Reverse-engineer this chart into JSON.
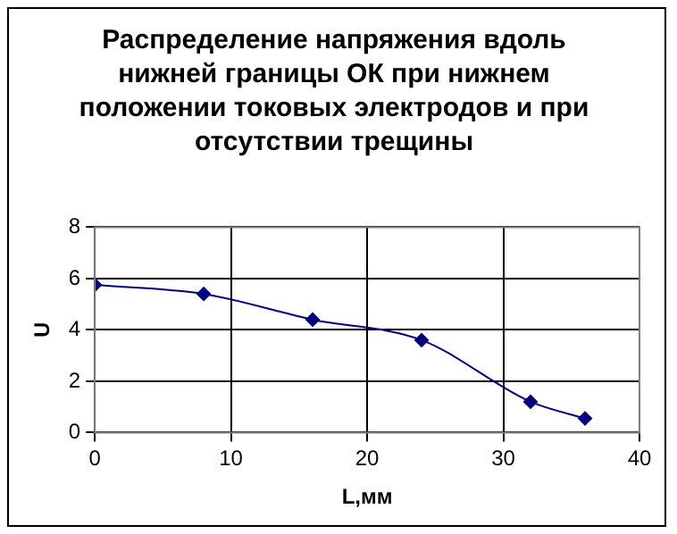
{
  "chart_data": {
    "type": "line",
    "title": "Распределение напряжения вдоль нижней границы ОК при нижнем положении токовых электродов и при отсутствии трещины",
    "xlabel": "L,мм",
    "ylabel": "U",
    "series": [
      {
        "color": "#000080",
        "x": [
          0,
          8,
          16,
          24,
          32,
          36
        ],
        "values": [
          5.75,
          5.4,
          4.4,
          3.6,
          1.2,
          0.55
        ]
      }
    ],
    "xlim": [
      0,
      40
    ],
    "xticks": [
      0,
      10,
      20,
      30,
      40
    ],
    "ylim": [
      0,
      8
    ],
    "yticks": [
      0,
      2,
      4,
      6,
      8
    ],
    "grid": true,
    "marker": "diamond",
    "line_style": "solid",
    "legend": false
  }
}
